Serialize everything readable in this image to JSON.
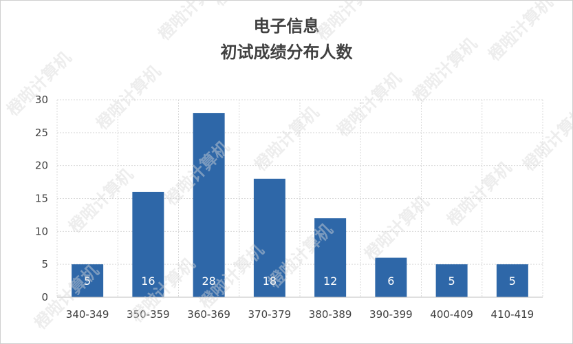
{
  "chart_data": {
    "type": "bar",
    "title_lines": [
      "电子信息",
      "初试成绩分布人数"
    ],
    "categories": [
      "340-349",
      "350-359",
      "360-369",
      "370-379",
      "380-389",
      "390-399",
      "400-409",
      "410-419"
    ],
    "values": [
      5,
      16,
      28,
      18,
      12,
      6,
      5,
      5
    ],
    "ylim": [
      0,
      30
    ],
    "yticks": [
      0,
      5,
      10,
      15,
      20,
      25,
      30
    ],
    "grid": true,
    "bar_color": "#2e67a8",
    "data_labels": true
  },
  "watermark": "橙啦计算机"
}
